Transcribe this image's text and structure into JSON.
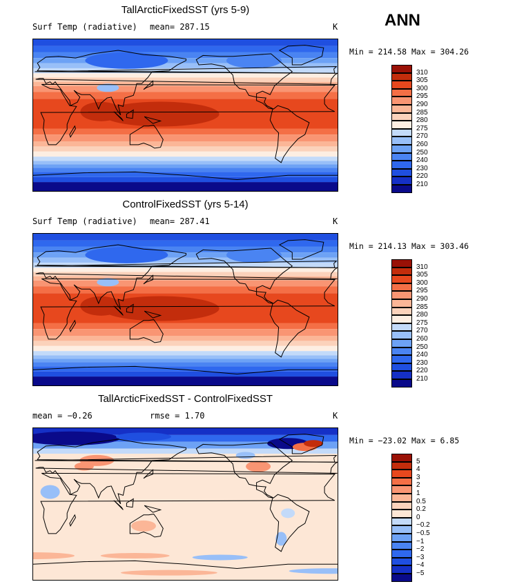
{
  "season": "ANN",
  "units": "K",
  "colors": {
    "abs": [
      "#0a0a8a",
      "#1530c6",
      "#1f4fe0",
      "#2f68ee",
      "#4a84f2",
      "#6da2f5",
      "#98bff8",
      "#c3daf9",
      "#fdeee2",
      "#fbd2bb",
      "#fbb697",
      "#f99573",
      "#f46f46",
      "#e7481e",
      "#c32d0c",
      "#9a1106"
    ],
    "diff": [
      "#0a0a8a",
      "#1530c6",
      "#1f4fe0",
      "#2f68ee",
      "#4a84f2",
      "#6da2f5",
      "#98bff8",
      "#c3daf9",
      "#fde7d6",
      "#fbd2bb",
      "#fbb697",
      "#f99573",
      "#f46f46",
      "#e7481e",
      "#c32d0c",
      "#9a1106"
    ]
  },
  "panels": [
    {
      "title": "TallArcticFixedSST (yrs 5-9)",
      "left_label": "Surf Temp (radiative)",
      "stat_label": "mean= 287.15",
      "units": "K",
      "minmax": "Min = 214.58 Max = 304.26",
      "colorbar": [
        "310",
        "305",
        "300",
        "295",
        "290",
        "285",
        "280",
        "275",
        "270",
        "260",
        "250",
        "240",
        "230",
        "220",
        "210"
      ]
    },
    {
      "title": "ControlFixedSST (yrs 5-14)",
      "left_label": "Surf Temp (radiative)",
      "stat_label": "mean= 287.41",
      "units": "K",
      "minmax": "Min = 214.13 Max = 303.46",
      "colorbar": [
        "310",
        "305",
        "300",
        "295",
        "290",
        "285",
        "280",
        "275",
        "270",
        "260",
        "250",
        "240",
        "230",
        "220",
        "210"
      ]
    },
    {
      "title": "TallArcticFixedSST - ControlFixedSST",
      "left_label": "mean =   −0.26",
      "stat_label": "rmse =    1.70",
      "units": "K",
      "minmax": "Min = −23.02 Max =   6.85",
      "colorbar": [
        "5",
        "4",
        "3",
        "2",
        "1",
        "0.5",
        "0.2",
        "0",
        "−0.2",
        "−0.5",
        "−1",
        "−2",
        "−3",
        "−4",
        "−5"
      ]
    }
  ],
  "chart_data": [
    {
      "type": "heatmap",
      "title": "TallArcticFixedSST (yrs 5-9)",
      "variable": "Surf Temp (radiative)",
      "units": "K",
      "mean": 287.15,
      "min": 214.58,
      "max": 304.26,
      "contour_levels": [
        210,
        220,
        230,
        240,
        250,
        260,
        270,
        275,
        280,
        285,
        290,
        295,
        300,
        305,
        310
      ],
      "region": "global, Pacific-centred"
    },
    {
      "type": "heatmap",
      "title": "ControlFixedSST (yrs 5-14)",
      "variable": "Surf Temp (radiative)",
      "units": "K",
      "mean": 287.41,
      "min": 214.13,
      "max": 303.46,
      "contour_levels": [
        210,
        220,
        230,
        240,
        250,
        260,
        270,
        275,
        280,
        285,
        290,
        295,
        300,
        305,
        310
      ],
      "region": "global, Pacific-centred"
    },
    {
      "type": "heatmap",
      "title": "TallArcticFixedSST - ControlFixedSST",
      "units": "K",
      "mean": -0.26,
      "rmse": 1.7,
      "min": -23.02,
      "max": 6.85,
      "contour_levels": [
        -5,
        -4,
        -3,
        -2,
        -1,
        -0.5,
        -0.2,
        0,
        0.2,
        0.5,
        1,
        2,
        3,
        4,
        5
      ],
      "region": "global, Pacific-centred"
    }
  ]
}
